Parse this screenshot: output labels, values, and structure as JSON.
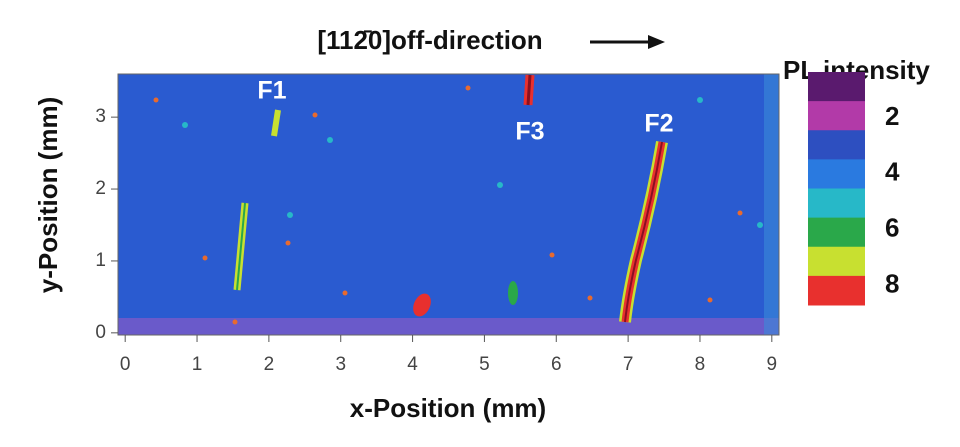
{
  "chart_data": {
    "type": "heatmap",
    "title": "[112̄0]off-direction",
    "x_label": "x-Position (mm)",
    "y_label": "y-Position (mm)",
    "xlim": [
      -0.1,
      9.1
    ],
    "xticks": [
      0,
      1,
      2,
      3,
      4,
      5,
      6,
      7,
      8,
      9
    ],
    "ylim": [
      -0.03,
      3.6
    ],
    "yticks": [
      0,
      1,
      2,
      3
    ],
    "annotations": [
      "F1",
      "F3",
      "F2"
    ],
    "colorbar": {
      "label": "PL intensity",
      "lim": [
        0.35,
        8.7
      ],
      "ticks": [
        2,
        4,
        6,
        8
      ],
      "colors": [
        "#5a1a6e",
        "#b23aa8",
        "#2d4fc0",
        "#2a7ae0",
        "#27b8c8",
        "#2aa84a",
        "#c8e030",
        "#e8302e"
      ]
    }
  }
}
